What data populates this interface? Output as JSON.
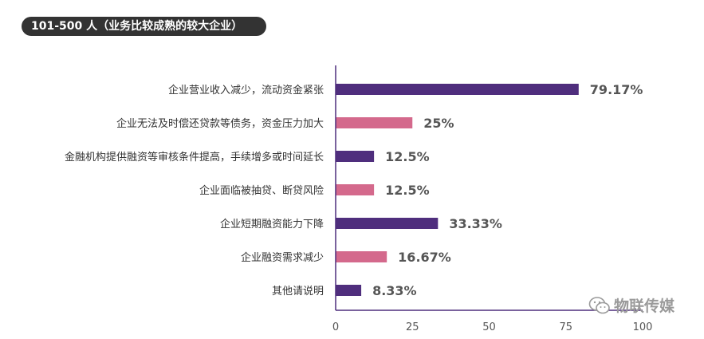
{
  "title": "101-500 人（业务比较成熟的较大企业）",
  "watermark": "物联传媒",
  "colors": {
    "dark_bar": "#4f2e7d",
    "pink_bar": "#d4698c",
    "axis": "#4f2e7d",
    "value_text": "#555555",
    "label_text": "#333333"
  },
  "chart_data": {
    "type": "bar",
    "orientation": "horizontal",
    "categories": [
      "企业营业收入减少，流动资金紧张",
      "企业无法及时偿还贷款等债务，资金压力加大",
      "金融机构提供融资等审核条件提高，手续增多或时间延长",
      "企业面临被抽贷、断贷风险",
      "企业短期融资能力下降",
      "企业融资需求减少",
      "其他请说明"
    ],
    "values": [
      79.17,
      25,
      12.5,
      12.5,
      33.33,
      16.67,
      8.33
    ],
    "value_labels": [
      "79.17%",
      "25%",
      "12.5%",
      "12.5%",
      "33.33%",
      "16.67%",
      "8.33%"
    ],
    "bar_colors": [
      "#4f2e7d",
      "#d4698c",
      "#4f2e7d",
      "#d4698c",
      "#4f2e7d",
      "#d4698c",
      "#4f2e7d"
    ],
    "xlim": [
      0,
      100
    ],
    "xticks": [
      "0",
      "25",
      "50",
      "75",
      "100"
    ],
    "grid": false,
    "legend": "none"
  }
}
